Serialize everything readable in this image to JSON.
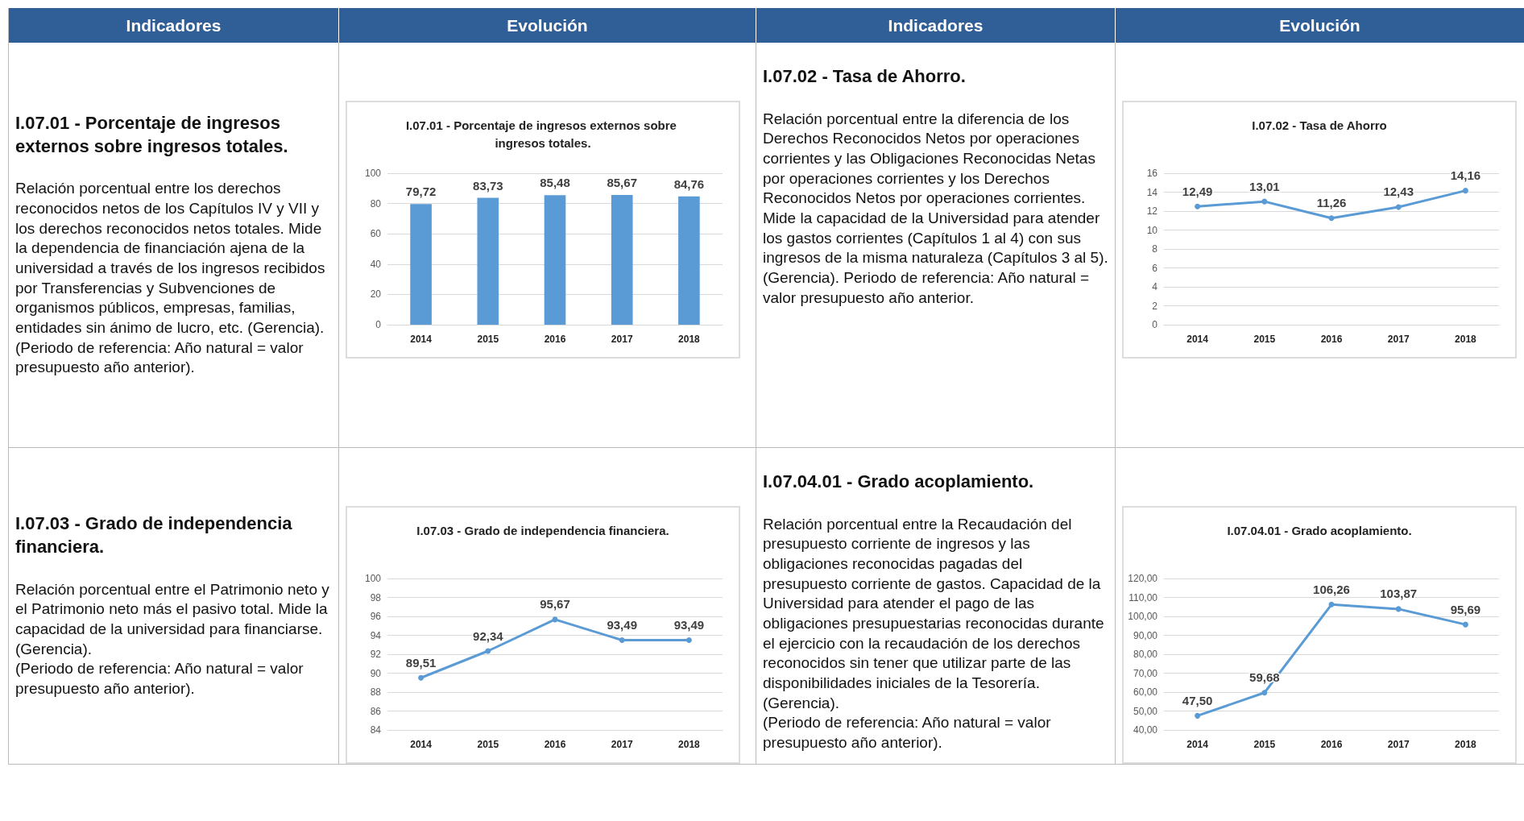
{
  "chart_data": [
    {
      "type": "other",
      "annotations": [
        "Indicadores",
        "Evolución",
        "Indicadores",
        "Evolución"
      ]
    },
    {
      "type": "other",
      "title": "I.07.01 - Porcentaje de ingresos externos sobre ingresos totales.",
      "annotations": [
        "Relación porcentual entre los derechos reconocidos netos de los Capítulos IV y VII y los derechos reconocidos netos totales. Mide la dependencia de financiación ajena de la universidad a través de los ingresos recibidos por Transferencias y Subvenciones de organismos públicos, empresas, familias, entidades sin ánimo de lucro, etc. (Gerencia).",
        "(Periodo de referencia: Año natural = valor presupuesto año anterior)."
      ]
    },
    {
      "type": "bar",
      "title": "I.07.01 - Porcentaje de ingresos externos sobre ingresos totales.",
      "categories": [
        "2014",
        "2015",
        "2016",
        "2017",
        "2018"
      ],
      "values": [
        79.72,
        83.73,
        85.48,
        85.67,
        84.76
      ],
      "value_labels": [
        "79,72",
        "83,73",
        "85,48",
        "85,67",
        "84,76"
      ],
      "color": "#5b9bd5",
      "ylim": [
        0,
        100
      ],
      "yticks": [
        0,
        20,
        40,
        60,
        80,
        100
      ],
      "grid": "y"
    },
    {
      "type": "other",
      "title": "I.07.02 - Tasa de Ahorro.",
      "annotations": [
        "Relación porcentual entre la diferencia de los Derechos Reconocidos Netos por operaciones corrientes y las Obligaciones Reconocidas Netas por operaciones corrientes y los Derechos Reconocidos Netos por operaciones corrientes. Mide la capacidad de la Universidad para atender los gastos corrientes (Capítulos 1 al 4) con sus ingresos de la misma naturaleza (Capítulos 3 al 5). (Gerencia). Periodo de referencia: Año natural = valor presupuesto año anterior."
      ]
    },
    {
      "type": "line",
      "title": "I.07.02 - Tasa de Ahorro",
      "categories": [
        "2014",
        "2015",
        "2016",
        "2017",
        "2018"
      ],
      "values": [
        12.49,
        13.01,
        11.26,
        12.43,
        14.16
      ],
      "value_labels": [
        "12,49",
        "13,01",
        "11,26",
        "12,43",
        "14,16"
      ],
      "color": "#5b9bd5",
      "marker": "circle",
      "line_style": "solid",
      "ylim": [
        0,
        16
      ],
      "yticks": [
        0,
        2,
        4,
        6,
        8,
        10,
        12,
        14,
        16
      ],
      "grid": "y"
    },
    {
      "type": "other",
      "title": "I.07.03 - Grado de independencia financiera.",
      "annotations": [
        "Relación porcentual entre el Patrimonio neto y el Patrimonio neto más el pasivo total. Mide la capacidad de la universidad para financiarse. (Gerencia).",
        "(Periodo de referencia: Año natural = valor presupuesto año anterior)."
      ]
    },
    {
      "type": "line",
      "title": "I.07.03 - Grado de independencia financiera.",
      "categories": [
        "2014",
        "2015",
        "2016",
        "2017",
        "2018"
      ],
      "values": [
        89.51,
        92.34,
        95.67,
        93.49,
        93.49
      ],
      "value_labels": [
        "89,51",
        "92,34",
        "95,67",
        "93,49",
        "93,49"
      ],
      "color": "#5b9bd5",
      "marker": "circle",
      "line_style": "solid",
      "ylim": [
        84,
        100
      ],
      "yticks": [
        84,
        86,
        88,
        90,
        92,
        94,
        96,
        98,
        100
      ],
      "grid": "y"
    },
    {
      "type": "other",
      "title": "I.07.04.01 - Grado acoplamiento.",
      "annotations": [
        "Relación porcentual entre la Recaudación del presupuesto corriente de ingresos y las obligaciones reconocidas pagadas del presupuesto corriente de gastos. Capacidad de la Universidad para atender el pago de las obligaciones presupuestarias reconocidas durante el ejercicio con la recaudación de los derechos reconocidos sin tener que utilizar parte de las disponibilidades iniciales de la Tesorería. (Gerencia).",
        "(Periodo de referencia: Año natural = valor presupuesto año anterior)."
      ]
    },
    {
      "type": "line",
      "title": "I.07.04.01 - Grado acoplamiento.",
      "categories": [
        "2014",
        "2015",
        "2016",
        "2017",
        "2018"
      ],
      "values": [
        47.5,
        59.68,
        106.26,
        103.87,
        95.69
      ],
      "value_labels": [
        "47,50",
        "59,68",
        "106,26",
        "103,87",
        "95,69"
      ],
      "color": "#5b9bd5",
      "marker": "circle",
      "line_style": "solid",
      "ylim": [
        40,
        120
      ],
      "yticks": [
        {
          "value": 40,
          "label": "40,00"
        },
        {
          "value": 50,
          "label": "50,00"
        },
        {
          "value": 60,
          "label": "60,00"
        },
        {
          "value": 70,
          "label": "70,00"
        },
        {
          "value": 80,
          "label": "80,00"
        },
        {
          "value": 90,
          "label": "90,00"
        },
        {
          "value": 100,
          "label": "100,00"
        },
        {
          "value": 110,
          "label": "110,00"
        },
        {
          "value": 120,
          "label": "120,00"
        }
      ],
      "grid": "y"
    }
  ]
}
